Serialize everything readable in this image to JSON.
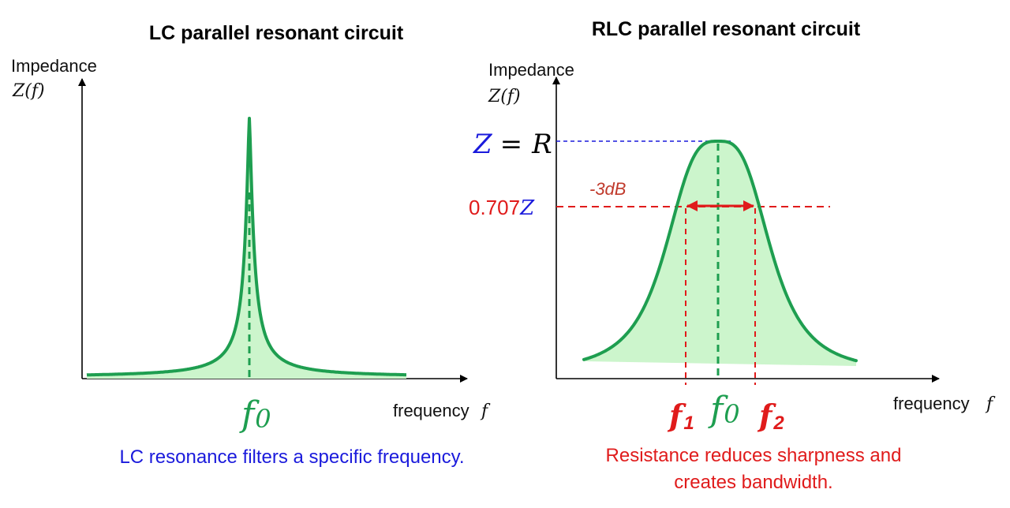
{
  "left_panel": {
    "title": "LC parallel resonant circuit",
    "y_axis_label": "Impedance",
    "y_axis_symbol": "Z(f)",
    "x_axis_label": "frequency",
    "x_axis_symbol": "f",
    "resonance_label": "f",
    "resonance_subscript": "0",
    "caption": "LC resonance filters a specific frequency."
  },
  "right_panel": {
    "title": "RLC parallel resonant circuit",
    "y_axis_label": "Impedance",
    "y_axis_symbol": "Z(f)",
    "x_axis_label": "frequency",
    "x_axis_symbol": "f",
    "peak_label_z": "Z",
    "peak_label_eq": "=",
    "peak_label_r": "R",
    "half_power_prefix": "0.707",
    "half_power_z": "Z",
    "bandwidth_label": "-3dB",
    "f1_label": "f",
    "f1_subscript": "1",
    "f0_label": "f",
    "f0_subscript": "0",
    "f2_label": "f",
    "f2_subscript": "2",
    "caption_line1": "Resistance reduces sharpness and",
    "caption_line2": "creates bandwidth."
  },
  "colors": {
    "curve": "#1e9e50",
    "fill": "#ccf5cc",
    "caption_blue": "#1a1adc",
    "accent_red": "#e01b1b",
    "axis": "#000000"
  }
}
